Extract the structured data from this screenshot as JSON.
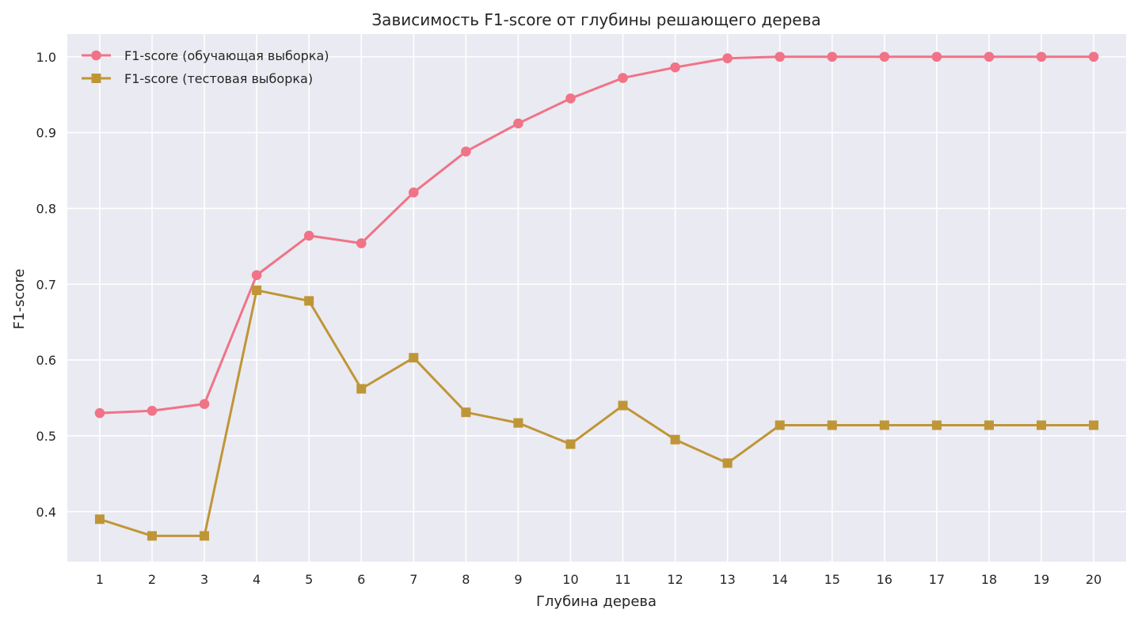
{
  "chart_data": {
    "type": "line",
    "title": "Зависимость F1-score от глубины решающего дерева",
    "xlabel": "Глубина дерева",
    "ylabel": "F1-score",
    "x": [
      1,
      2,
      3,
      4,
      5,
      6,
      7,
      8,
      9,
      10,
      11,
      12,
      13,
      14,
      15,
      16,
      17,
      18,
      19,
      20
    ],
    "xlim": [
      0.38,
      20.62
    ],
    "ylim": [
      0.334,
      1.03
    ],
    "yticks": [
      0.4,
      0.5,
      0.6,
      0.7,
      0.8,
      0.9,
      1.0
    ],
    "grid": true,
    "legend_position": "top-left",
    "background": "#eaeaf2",
    "series": [
      {
        "name": "F1-score (обучающая выборка)",
        "color": "#f07387",
        "marker": "circle",
        "values": [
          0.53,
          0.533,
          0.542,
          0.712,
          0.764,
          0.754,
          0.821,
          0.875,
          0.912,
          0.945,
          0.972,
          0.986,
          0.998,
          1.0,
          1.0,
          1.0,
          1.0,
          1.0,
          1.0,
          1.0
        ]
      },
      {
        "name": "F1-score (тестовая выборка)",
        "color": "#bf9637",
        "marker": "square",
        "values": [
          0.39,
          0.368,
          0.368,
          0.692,
          0.678,
          0.562,
          0.603,
          0.531,
          0.517,
          0.489,
          0.54,
          0.495,
          0.464,
          0.514,
          0.514,
          0.514,
          0.514,
          0.514,
          0.514,
          0.514
        ]
      }
    ]
  }
}
